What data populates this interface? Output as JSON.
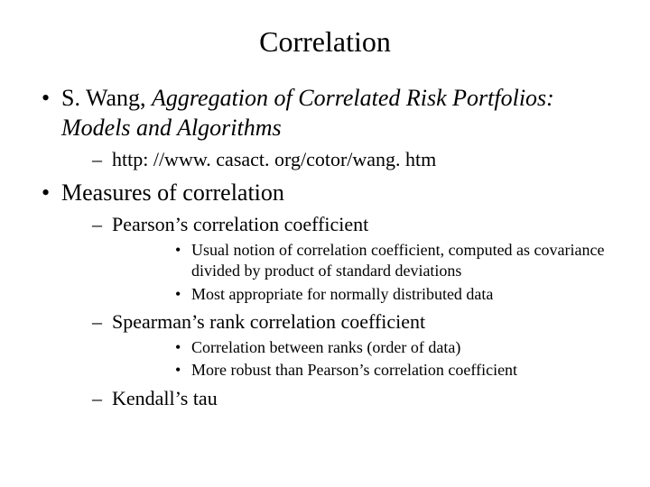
{
  "title": "Correlation",
  "bullets": {
    "ref": {
      "author": "S. Wang, ",
      "work_title": "Aggregation of Correlated Risk Portfolios: Models and Algorithms",
      "url": "http: //www. casact. org/cotor/wang. htm"
    },
    "measures": {
      "heading": "Measures of correlation",
      "pearson": {
        "label": "Pearson’s correlation coefficient",
        "note1": "Usual notion of correlation coefficient, computed as covariance divided by product of standard deviations",
        "note2": "Most appropriate for normally distributed data"
      },
      "spearman": {
        "label": "Spearman’s rank correlation coefficient",
        "note1": "Correlation between ranks (order of data)",
        "note2": "More robust than Pearson’s correlation coefficient"
      },
      "kendall": {
        "label": "Kendall’s tau"
      }
    }
  },
  "style": {
    "background_color": "#ffffff",
    "text_color": "#000000",
    "font_family": "Times New Roman",
    "title_fontsize": 32,
    "level1_fontsize": 26,
    "level2_fontsize": 22,
    "level3_fontsize": 18,
    "slide_width": 720,
    "slide_height": 540
  }
}
